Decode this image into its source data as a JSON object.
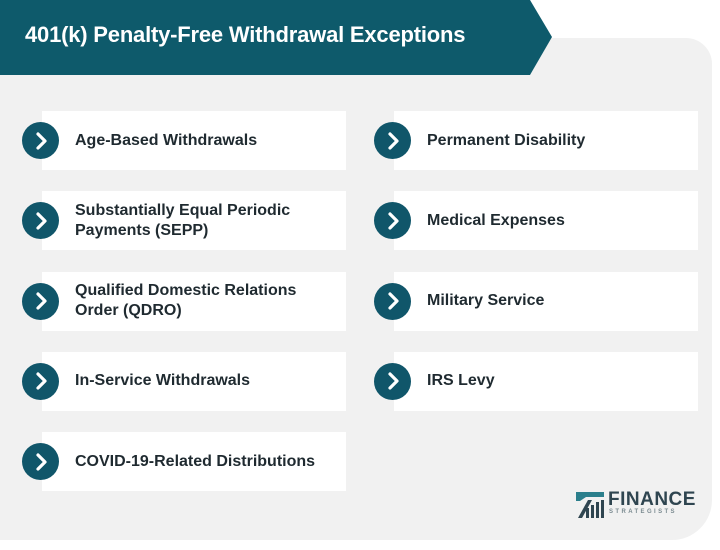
{
  "title": "401(k) Penalty-Free Withdrawal Exceptions",
  "colors": {
    "banner": "#0e5a6b",
    "icon": "#10566a",
    "panel": "#f1f1f1",
    "text": "#1f2a30"
  },
  "left_items": [
    {
      "label": "Age-Based Withdrawals",
      "icon": "chevron-right-icon"
    },
    {
      "label": "Substantially Equal Periodic Payments (SEPP)",
      "icon": "chevron-right-icon"
    },
    {
      "label": "Qualified Domestic Relations Order (QDRO)",
      "icon": "chevron-right-icon"
    },
    {
      "label": "In-Service Withdrawals",
      "icon": "chevron-right-icon"
    },
    {
      "label": "COVID-19-Related Distributions",
      "icon": "chevron-right-icon"
    }
  ],
  "right_items": [
    {
      "label": "Permanent Disability",
      "icon": "chevron-right-icon"
    },
    {
      "label": "Medical Expenses",
      "icon": "chevron-right-icon"
    },
    {
      "label": "Military Service",
      "icon": "chevron-right-icon"
    },
    {
      "label": "IRS Levy",
      "icon": "chevron-right-icon"
    }
  ],
  "logo": {
    "name": "FINANCE",
    "sub": "STRATEGISTS"
  }
}
